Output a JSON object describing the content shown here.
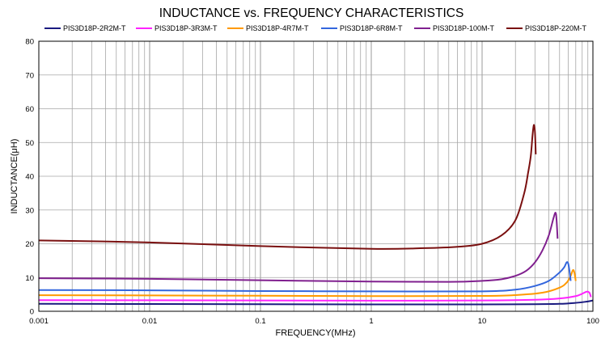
{
  "chart_data": {
    "type": "line",
    "title": "INDUCTANCE vs. FREQUENCY CHARACTERISTICS",
    "xlabel": "FREQUENCY(MHz)",
    "ylabel": "INDUCTANCE(μH)",
    "xscale": "log",
    "xlim": [
      0.001,
      100
    ],
    "ylim": [
      0,
      80
    ],
    "xticks": [
      0.001,
      0.01,
      0.1,
      1,
      10,
      100
    ],
    "xtick_labels": [
      "0.001",
      "0.01",
      "0.1",
      "1",
      "10",
      "100"
    ],
    "yticks": [
      0,
      10,
      20,
      30,
      40,
      50,
      60,
      70,
      80
    ],
    "ytick_labels": [
      "0",
      "10",
      "20",
      "30",
      "40",
      "50",
      "60",
      "70",
      "80"
    ],
    "grid": true,
    "legend_position": "top",
    "series": [
      {
        "name": "PIS3D18P-2R2M-T",
        "color": "#1a1a80",
        "points": [
          [
            0.001,
            2.2
          ],
          [
            0.01,
            2.15
          ],
          [
            0.1,
            2.1
          ],
          [
            1,
            2.05
          ],
          [
            10,
            2.05
          ],
          [
            30,
            2.1
          ],
          [
            50,
            2.2
          ],
          [
            70,
            2.5
          ],
          [
            85,
            2.8
          ],
          [
            100,
            3.2
          ]
        ]
      },
      {
        "name": "PIS3D18P-3R3M-T",
        "color": "#ff22ff",
        "points": [
          [
            0.001,
            3.3
          ],
          [
            0.01,
            3.25
          ],
          [
            0.1,
            3.2
          ],
          [
            1,
            3.15
          ],
          [
            10,
            3.2
          ],
          [
            30,
            3.4
          ],
          [
            50,
            3.8
          ],
          [
            70,
            4.5
          ],
          [
            80,
            5.2
          ],
          [
            88,
            5.8
          ],
          [
            93,
            5.5
          ],
          [
            96,
            4.2
          ]
        ]
      },
      {
        "name": "PIS3D18P-4R7M-T",
        "color": "#ff9900",
        "points": [
          [
            0.001,
            4.75
          ],
          [
            0.01,
            4.7
          ],
          [
            0.1,
            4.6
          ],
          [
            1,
            4.5
          ],
          [
            10,
            4.55
          ],
          [
            20,
            4.8
          ],
          [
            35,
            5.5
          ],
          [
            50,
            7.0
          ],
          [
            58,
            8.5
          ],
          [
            63,
            10.5
          ],
          [
            66,
            12.2
          ],
          [
            68,
            11.5
          ],
          [
            70,
            9.0
          ]
        ]
      },
      {
        "name": "PIS3D18P-6R8M-T",
        "color": "#3366dd",
        "points": [
          [
            0.001,
            6.3
          ],
          [
            0.01,
            6.2
          ],
          [
            0.1,
            6.0
          ],
          [
            1,
            5.9
          ],
          [
            10,
            5.9
          ],
          [
            20,
            6.4
          ],
          [
            30,
            7.5
          ],
          [
            40,
            9.0
          ],
          [
            50,
            11.5
          ],
          [
            55,
            13.0
          ],
          [
            58,
            14.5
          ],
          [
            60,
            14.0
          ],
          [
            62,
            11.0
          ],
          [
            63,
            9.0
          ]
        ]
      },
      {
        "name": "PIS3D18P-100M-T",
        "color": "#80208f",
        "points": [
          [
            0.001,
            9.8
          ],
          [
            0.01,
            9.6
          ],
          [
            0.1,
            9.2
          ],
          [
            1,
            8.8
          ],
          [
            5,
            8.7
          ],
          [
            10,
            9.0
          ],
          [
            15,
            9.5
          ],
          [
            20,
            10.5
          ],
          [
            25,
            12.0
          ],
          [
            30,
            14.5
          ],
          [
            35,
            18.0
          ],
          [
            40,
            22.5
          ],
          [
            44,
            27.5
          ],
          [
            46,
            29.2
          ],
          [
            47,
            27.0
          ],
          [
            48,
            21.5
          ]
        ]
      },
      {
        "name": "PIS3D18P-220M-T",
        "color": "#7a1010",
        "points": [
          [
            0.001,
            21.0
          ],
          [
            0.01,
            20.4
          ],
          [
            0.1,
            19.3
          ],
          [
            1,
            18.5
          ],
          [
            3,
            18.7
          ],
          [
            6,
            19.1
          ],
          [
            10,
            20.0
          ],
          [
            15,
            22.5
          ],
          [
            20,
            27.0
          ],
          [
            24,
            35.0
          ],
          [
            26,
            41.0
          ],
          [
            27.5,
            46.0
          ],
          [
            28.5,
            52.0
          ],
          [
            29.3,
            55.2
          ],
          [
            30,
            53.0
          ],
          [
            30.5,
            46.5
          ]
        ]
      }
    ]
  }
}
